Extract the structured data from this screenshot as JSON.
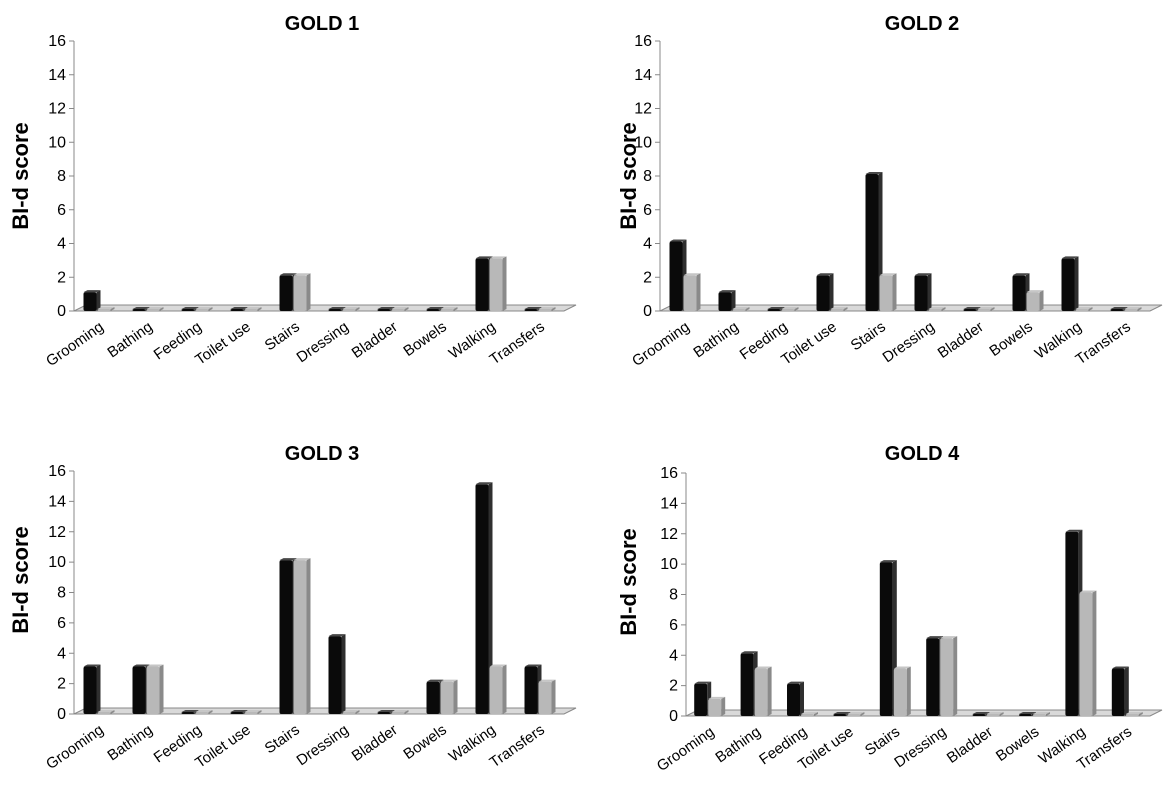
{
  "figure": {
    "colors": {
      "series_dark": "#0a0a0a",
      "series_light": "#b8b8b8",
      "floor": "#d9d9d9",
      "axis": "#888888"
    }
  },
  "chart_data": [
    {
      "type": "bar",
      "title": "GOLD 1",
      "ylabel": "BI-d score",
      "xlabel": "",
      "ylim": [
        0,
        16
      ],
      "yticks": [
        0,
        2,
        4,
        6,
        8,
        10,
        12,
        14,
        16
      ],
      "categories": [
        "Grooming",
        "Bathing",
        "Feeding",
        "Toilet use",
        "Stairs",
        "Dressing",
        "Bladder",
        "Bowels",
        "Walking",
        "Transfers"
      ],
      "series": [
        {
          "values": [
            1,
            0,
            0,
            0,
            2,
            0,
            0,
            0,
            3,
            0
          ]
        },
        {
          "values": [
            0,
            0,
            0,
            0,
            2,
            0,
            0,
            0,
            3,
            0
          ]
        }
      ],
      "grid": false
    },
    {
      "type": "bar",
      "title": "GOLD 2",
      "ylabel": "BI-d score",
      "xlabel": "",
      "ylim": [
        0,
        16
      ],
      "yticks": [
        0,
        2,
        4,
        6,
        8,
        10,
        12,
        14,
        16
      ],
      "categories": [
        "Grooming",
        "Bathing",
        "Feeding",
        "Toilet use",
        "Stairs",
        "Dressing",
        "Bladder",
        "Bowels",
        "Walking",
        "Transfers"
      ],
      "series": [
        {
          "values": [
            4,
            1,
            0,
            2,
            8,
            2,
            0,
            2,
            3,
            0
          ]
        },
        {
          "values": [
            2,
            0,
            0,
            0,
            2,
            0,
            0,
            1,
            0,
            0
          ]
        }
      ],
      "grid": false
    },
    {
      "type": "bar",
      "title": "GOLD 3",
      "ylabel": "BI-d score",
      "xlabel": "",
      "ylim": [
        0,
        16
      ],
      "yticks": [
        0,
        2,
        4,
        6,
        8,
        10,
        12,
        14,
        16
      ],
      "categories": [
        "Grooming",
        "Bathing",
        "Feeding",
        "Toilet use",
        "Stairs",
        "Dressing",
        "Bladder",
        "Bowels",
        "Walking",
        "Transfers"
      ],
      "series": [
        {
          "values": [
            3,
            3,
            0,
            0,
            10,
            5,
            0,
            2,
            15,
            3
          ]
        },
        {
          "values": [
            0,
            3,
            0,
            0,
            10,
            0,
            0,
            2,
            3,
            2
          ]
        }
      ],
      "grid": false
    },
    {
      "type": "bar",
      "title": "GOLD 4",
      "ylabel": "BI-d score",
      "xlabel": "",
      "ylim": [
        0,
        16
      ],
      "yticks": [
        0,
        2,
        4,
        6,
        8,
        10,
        12,
        14,
        16
      ],
      "categories": [
        "Grooming",
        "Bathing",
        "Feeding",
        "Toilet use",
        "Stairs",
        "Dressing",
        "Bladder",
        "Bowels",
        "Walking",
        "Transfers"
      ],
      "series": [
        {
          "values": [
            2,
            4,
            2,
            0,
            10,
            5,
            0,
            0,
            12,
            3
          ]
        },
        {
          "values": [
            1,
            3,
            0,
            0,
            3,
            5,
            0,
            0,
            8,
            0
          ]
        }
      ],
      "grid": false
    }
  ]
}
